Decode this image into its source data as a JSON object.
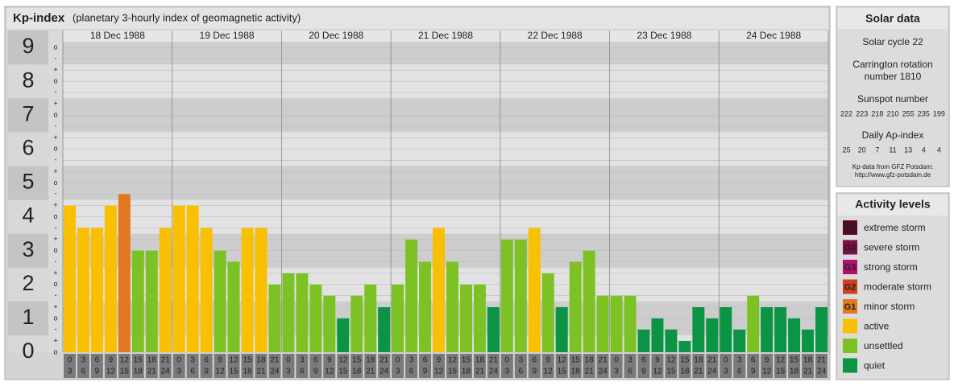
{
  "header": {
    "title": "Kp-index",
    "subtitle": "(planetary 3-hourly index of geomagnetic activity)"
  },
  "chart_data": {
    "type": "bar",
    "ylim": [
      0,
      9.5
    ],
    "yticks": [
      0,
      1,
      2,
      3,
      4,
      5,
      6,
      7,
      8,
      9
    ],
    "minor_ticks": [
      {
        "value": 0,
        "label": "o"
      },
      {
        "value": 0.33,
        "label": "+"
      },
      {
        "value": 0.67,
        "label": "-"
      },
      {
        "value": 1,
        "label": "o"
      },
      {
        "value": 1.33,
        "label": "+"
      },
      {
        "value": 1.67,
        "label": "-"
      },
      {
        "value": 2,
        "label": "o"
      },
      {
        "value": 2.33,
        "label": "+"
      },
      {
        "value": 2.67,
        "label": "-"
      },
      {
        "value": 3,
        "label": "o"
      },
      {
        "value": 3.33,
        "label": "+"
      },
      {
        "value": 3.67,
        "label": "-"
      },
      {
        "value": 4,
        "label": "o"
      },
      {
        "value": 4.33,
        "label": "+"
      },
      {
        "value": 4.67,
        "label": "-"
      },
      {
        "value": 5,
        "label": "o"
      },
      {
        "value": 5.33,
        "label": "+"
      },
      {
        "value": 5.67,
        "label": "-"
      },
      {
        "value": 6,
        "label": "o"
      },
      {
        "value": 6.33,
        "label": "+"
      },
      {
        "value": 6.67,
        "label": "-"
      },
      {
        "value": 7,
        "label": "o"
      },
      {
        "value": 7.33,
        "label": "+"
      },
      {
        "value": 7.67,
        "label": "-"
      },
      {
        "value": 8,
        "label": "o"
      },
      {
        "value": 8.33,
        "label": "+"
      },
      {
        "value": 8.67,
        "label": "-"
      },
      {
        "value": 9,
        "label": "o"
      }
    ],
    "hours": [
      {
        "from": "0",
        "to": "3"
      },
      {
        "from": "3",
        "to": "6"
      },
      {
        "from": "6",
        "to": "9"
      },
      {
        "from": "9",
        "to": "12"
      },
      {
        "from": "12",
        "to": "15"
      },
      {
        "from": "15",
        "to": "18"
      },
      {
        "from": "18",
        "to": "21"
      },
      {
        "from": "21",
        "to": "24"
      }
    ],
    "days": [
      {
        "label": "18 Dec 1988",
        "values": [
          4.33,
          3.67,
          3.67,
          4.33,
          4.67,
          3,
          3,
          3.67
        ],
        "colors": [
          "#f8c000",
          "#f8c000",
          "#f8c000",
          "#f8c000",
          "#e07820",
          "#7cc224",
          "#7cc224",
          "#f8c000"
        ]
      },
      {
        "label": "19 Dec 1988",
        "values": [
          4.33,
          4.33,
          3.67,
          3,
          2.67,
          3.67,
          3.67,
          2
        ],
        "colors": [
          "#f8c000",
          "#f8c000",
          "#f8c000",
          "#7cc224",
          "#7cc224",
          "#f8c000",
          "#f8c000",
          "#7cc224"
        ]
      },
      {
        "label": "20 Dec 1988",
        "values": [
          2.33,
          2.33,
          2,
          1.67,
          1,
          1.67,
          2,
          1.33
        ],
        "colors": [
          "#7cc224",
          "#7cc224",
          "#7cc224",
          "#7cc224",
          "#0a9444",
          "#7cc224",
          "#7cc224",
          "#0a9444"
        ]
      },
      {
        "label": "21 Dec 1988",
        "values": [
          2,
          3.33,
          2.67,
          3.67,
          2.67,
          2,
          2,
          1.33
        ],
        "colors": [
          "#7cc224",
          "#7cc224",
          "#7cc224",
          "#f8c000",
          "#7cc224",
          "#7cc224",
          "#7cc224",
          "#0a9444"
        ]
      },
      {
        "label": "22 Dec 1988",
        "values": [
          3.33,
          3.33,
          3.67,
          2.33,
          1.33,
          2.67,
          3,
          1.67
        ],
        "colors": [
          "#7cc224",
          "#7cc224",
          "#f8c000",
          "#7cc224",
          "#0a9444",
          "#7cc224",
          "#7cc224",
          "#7cc224"
        ]
      },
      {
        "label": "23 Dec 1988",
        "values": [
          1.67,
          1.67,
          0.67,
          1,
          0.67,
          0.33,
          1.33,
          1
        ],
        "colors": [
          "#7cc224",
          "#7cc224",
          "#0a9444",
          "#0a9444",
          "#0a9444",
          "#0a9444",
          "#0a9444",
          "#0a9444"
        ]
      },
      {
        "label": "24 Dec 1988",
        "values": [
          1.33,
          0.67,
          1.67,
          1.33,
          1.33,
          1,
          0.67,
          1.33
        ],
        "colors": [
          "#0a9444",
          "#0a9444",
          "#7cc224",
          "#0a9444",
          "#0a9444",
          "#0a9444",
          "#0a9444",
          "#0a9444"
        ]
      }
    ]
  },
  "solar": {
    "title": "Solar data",
    "cycle": "Solar cycle 22",
    "carrington": [
      "Carrington rotation",
      "number 1810"
    ],
    "sunspot_title": "Sunspot number",
    "sunspot": [
      222,
      223,
      218,
      210,
      255,
      235,
      199
    ],
    "ap_title": "Daily Ap-index",
    "ap": [
      25,
      20,
      7,
      11,
      13,
      4,
      4
    ],
    "source": [
      "Kp-data from GFZ Potsdam:",
      "http://www.gfz-potsdam.de"
    ]
  },
  "levels": {
    "title": "Activity levels",
    "items": [
      {
        "badge": "G5",
        "name": "extreme storm",
        "color": "#55062a"
      },
      {
        "badge": "G4",
        "name": "severe storm",
        "color": "#7a1046"
      },
      {
        "badge": "G3",
        "name": "strong storm",
        "color": "#b0106a"
      },
      {
        "badge": "G2",
        "name": "moderate storm",
        "color": "#d0401c"
      },
      {
        "badge": "G1",
        "name": "minor storm",
        "color": "#e07820"
      },
      {
        "name": "active",
        "color": "#f8c000"
      },
      {
        "name": "unsettled",
        "color": "#7cc224"
      },
      {
        "name": "quiet",
        "color": "#0a9444"
      }
    ]
  }
}
